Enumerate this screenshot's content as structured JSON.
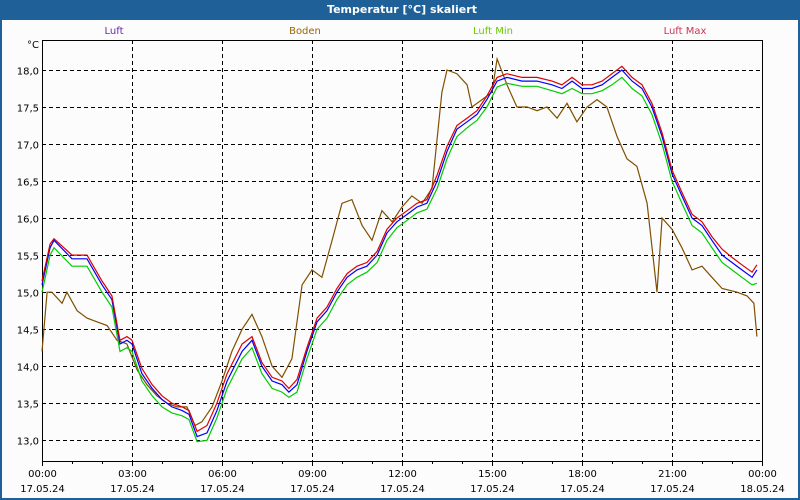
{
  "window": {
    "title": "Temperatur [°C] skaliert"
  },
  "chart_data": {
    "type": "line",
    "title": "Temperatur [°C] skaliert",
    "ylabel": "°C",
    "xlabel": "",
    "ylim": [
      12.72,
      18.405
    ],
    "xlim": [
      0,
      24
    ],
    "grid": true,
    "legend_placement": "top",
    "yticks": [
      {
        "value": 13.0,
        "label": "13,0"
      },
      {
        "value": 13.5,
        "label": "13,5"
      },
      {
        "value": 14.0,
        "label": "14,0"
      },
      {
        "value": 14.5,
        "label": "14,5"
      },
      {
        "value": 15.0,
        "label": "15,0"
      },
      {
        "value": 15.5,
        "label": "15,5"
      },
      {
        "value": 16.0,
        "label": "16,0"
      },
      {
        "value": 16.5,
        "label": "16,5"
      },
      {
        "value": 17.0,
        "label": "17,0"
      },
      {
        "value": 17.5,
        "label": "17,5"
      },
      {
        "value": 18.0,
        "label": "18,0"
      }
    ],
    "xticks": [
      {
        "value": 0,
        "time": "00:00",
        "date": "17.05.24"
      },
      {
        "value": 3,
        "time": "03:00",
        "date": "17.05.24"
      },
      {
        "value": 6,
        "time": "06:00",
        "date": "17.05.24"
      },
      {
        "value": 9,
        "time": "09:00",
        "date": "17.05.24"
      },
      {
        "value": 12,
        "time": "12:00",
        "date": "17.05.24"
      },
      {
        "value": 15,
        "time": "15:00",
        "date": "17.05.24"
      },
      {
        "value": 18,
        "time": "18:00",
        "date": "17.05.24"
      },
      {
        "value": 21,
        "time": "21:00",
        "date": "17.05.24"
      },
      {
        "value": 24,
        "time": "00:00",
        "date": "18.05.24"
      }
    ],
    "air_x": [
      0,
      0.27,
      0.4,
      1,
      1.5,
      2,
      2.33,
      2.6,
      2.83,
      3,
      3.33,
      3.67,
      4,
      4.33,
      4.67,
      4.9,
      5.17,
      5.5,
      5.83,
      6.17,
      6.67,
      7,
      7.33,
      7.67,
      8,
      8.23,
      8.5,
      8.83,
      9.17,
      9.5,
      9.83,
      10.17,
      10.5,
      10.83,
      11.17,
      11.5,
      11.83,
      12.17,
      12.5,
      12.83,
      13.17,
      13.5,
      13.83,
      14.17,
      14.5,
      14.83,
      15.17,
      15.5,
      16,
      16.5,
      17,
      17.33,
      17.67,
      18,
      18.33,
      18.67,
      19,
      19.33,
      19.67,
      20,
      20.33,
      20.67,
      21,
      21.33,
      21.67,
      22,
      22.33,
      22.67,
      23,
      23.33,
      23.67,
      23.83
    ],
    "series": [
      {
        "name": "Luft",
        "color": "#0000ff",
        "legend_color": "#6a2aa8",
        "values": [
          15.1,
          15.6,
          15.7,
          15.45,
          15.45,
          15.1,
          14.9,
          14.3,
          14.35,
          14.3,
          13.9,
          13.7,
          13.55,
          13.45,
          13.4,
          13.35,
          13.05,
          13.1,
          13.4,
          13.8,
          14.2,
          14.35,
          14.0,
          13.8,
          13.75,
          13.65,
          13.75,
          14.2,
          14.6,
          14.75,
          15.0,
          15.2,
          15.3,
          15.35,
          15.5,
          15.8,
          15.95,
          16.05,
          16.15,
          16.2,
          16.5,
          16.9,
          17.2,
          17.3,
          17.4,
          17.6,
          17.85,
          17.9,
          17.85,
          17.85,
          17.8,
          17.75,
          17.85,
          17.75,
          17.75,
          17.8,
          17.9,
          18.0,
          17.85,
          17.75,
          17.5,
          17.1,
          16.6,
          16.3,
          16.0,
          15.9,
          15.7,
          15.5,
          15.4,
          15.3,
          15.2,
          15.3
        ]
      },
      {
        "name": "Boden",
        "color": "#805000",
        "legend_color": "#9a6400",
        "x": [
          0,
          0.17,
          0.33,
          0.67,
          0.83,
          1.17,
          1.5,
          1.83,
          2.17,
          2.5,
          2.83,
          3.17,
          3.5,
          3.83,
          4.17,
          4.5,
          4.83,
          5.1,
          5.33,
          5.67,
          6,
          6.33,
          6.67,
          7,
          7.33,
          7.67,
          8,
          8.33,
          8.67,
          9,
          9.33,
          9.67,
          10,
          10.33,
          10.67,
          11,
          11.33,
          11.67,
          12,
          12.33,
          12.67,
          13,
          13.33,
          13.5,
          13.83,
          14.17,
          14.33,
          14.67,
          15,
          15.17,
          15.5,
          15.83,
          16.17,
          16.5,
          16.83,
          17.17,
          17.5,
          17.83,
          18.17,
          18.5,
          18.83,
          19.17,
          19.5,
          19.83,
          20.17,
          20.5,
          20.67,
          21,
          21.33,
          21.67,
          22,
          22.33,
          22.67,
          23.17,
          23.5,
          23.73,
          23.83
        ],
        "values": [
          14.2,
          15.0,
          15.0,
          14.85,
          15.0,
          14.75,
          14.65,
          14.6,
          14.55,
          14.35,
          14.3,
          13.95,
          13.75,
          13.6,
          13.5,
          13.45,
          13.45,
          13.2,
          13.25,
          13.45,
          13.8,
          14.2,
          14.5,
          14.7,
          14.4,
          14.0,
          13.85,
          14.1,
          15.1,
          15.3,
          15.2,
          15.7,
          16.2,
          16.25,
          15.9,
          15.7,
          16.1,
          15.95,
          16.15,
          16.3,
          16.2,
          16.4,
          17.7,
          18.0,
          17.95,
          17.8,
          17.5,
          17.6,
          17.7,
          18.15,
          17.8,
          17.5,
          17.5,
          17.45,
          17.5,
          17.35,
          17.55,
          17.3,
          17.5,
          17.6,
          17.5,
          17.1,
          16.8,
          16.7,
          16.2,
          15.0,
          16.0,
          15.85,
          15.6,
          15.3,
          15.35,
          15.2,
          15.05,
          15.0,
          14.95,
          14.85,
          14.4
        ]
      },
      {
        "name": "Luft Min",
        "color": "#00cc00",
        "legend_color": "#66cc00",
        "values": [
          15.0,
          15.5,
          15.6,
          15.35,
          15.35,
          15.0,
          14.8,
          14.2,
          14.25,
          14.2,
          13.8,
          13.6,
          13.45,
          13.37,
          13.33,
          13.28,
          12.98,
          13.0,
          13.3,
          13.7,
          14.1,
          14.25,
          13.9,
          13.7,
          13.65,
          13.58,
          13.65,
          14.1,
          14.5,
          14.65,
          14.9,
          15.1,
          15.2,
          15.27,
          15.4,
          15.7,
          15.87,
          15.97,
          16.07,
          16.12,
          16.4,
          16.8,
          17.1,
          17.22,
          17.32,
          17.5,
          17.77,
          17.82,
          17.78,
          17.78,
          17.72,
          17.68,
          17.75,
          17.68,
          17.68,
          17.72,
          17.8,
          17.9,
          17.75,
          17.65,
          17.4,
          17.0,
          16.5,
          16.2,
          15.9,
          15.8,
          15.6,
          15.4,
          15.3,
          15.2,
          15.1,
          15.12
        ]
      },
      {
        "name": "Luft Max",
        "color": "#dd0000",
        "legend_color": "#cc3355",
        "values": [
          15.15,
          15.65,
          15.72,
          15.5,
          15.5,
          15.15,
          14.95,
          14.35,
          14.4,
          14.35,
          13.97,
          13.75,
          13.6,
          13.5,
          13.45,
          13.4,
          13.12,
          13.2,
          13.5,
          13.9,
          14.3,
          14.4,
          14.05,
          13.85,
          13.8,
          13.7,
          13.82,
          14.25,
          14.65,
          14.8,
          15.05,
          15.25,
          15.35,
          15.4,
          15.55,
          15.85,
          16.0,
          16.1,
          16.2,
          16.25,
          16.58,
          16.97,
          17.25,
          17.35,
          17.45,
          17.65,
          17.9,
          17.95,
          17.9,
          17.9,
          17.85,
          17.8,
          17.9,
          17.8,
          17.8,
          17.85,
          17.95,
          18.05,
          17.9,
          17.8,
          17.55,
          17.15,
          16.65,
          16.35,
          16.05,
          15.95,
          15.75,
          15.58,
          15.47,
          15.37,
          15.27,
          15.37
        ]
      }
    ]
  }
}
